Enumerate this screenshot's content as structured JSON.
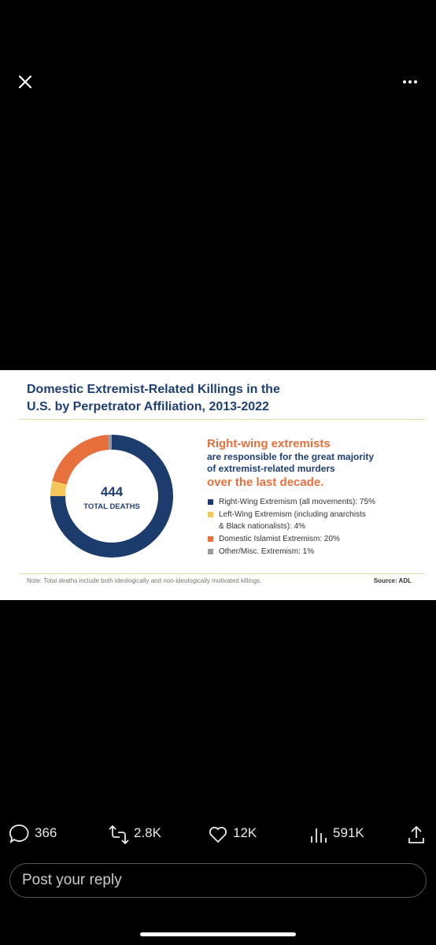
{
  "chart_data": {
    "type": "donut",
    "title": "Domestic Extremist-Related Killings in the U.S. by Perpetrator Affiliation, 2013-2022",
    "total": 444,
    "total_label": "TOTAL DEATHS",
    "headline": [
      "Right-wing extremists",
      "are responsible for the great majority of extremist-related murders",
      "over the last decade."
    ],
    "categories": [
      "Right-Wing Extremism (all movements): 75%",
      "Left-Wing Extremism (including anarchists & Black nationalists): 4%",
      "Domestic Islamist Extremism: 20%",
      "Other/Misc. Extremism: 1%"
    ],
    "values": [
      75,
      4,
      20,
      1
    ],
    "colors": [
      "#1d3c6e",
      "#f5c75a",
      "#e8703d",
      "#9a9a9a"
    ],
    "note": "Note: Total deaths include both ideologically and non-ideologically motivated killings.",
    "source": "Source: ADL"
  },
  "actions": {
    "replies": "366",
    "reposts": "2.8K",
    "likes": "12K",
    "views": "591K"
  },
  "reply_placeholder": "Post your reply"
}
